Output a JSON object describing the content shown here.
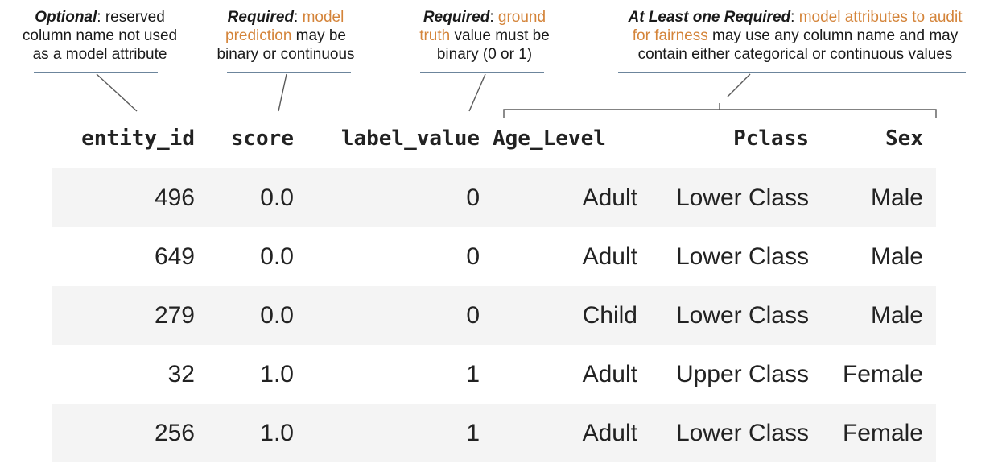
{
  "annotations": {
    "optional": {
      "label": "Optional",
      "text_line1": ": reserved",
      "text_line2": "column name not used",
      "text_line3": "as a model attribute"
    },
    "score": {
      "label": "Required",
      "sep": ": ",
      "highlight_line1": "model",
      "highlight_line2": "prediction",
      "text_line2": " may be",
      "text_line3": "binary or continuous"
    },
    "label_value": {
      "label": "Required",
      "sep": ": ",
      "highlight_line1": "ground",
      "highlight_line2": "truth",
      "text_line2": " value must be",
      "text_line3": "binary (0 or 1)"
    },
    "attributes": {
      "label": "At Least one Required",
      "sep": ":  ",
      "highlight_line1": "model attributes to audit",
      "highlight_line2": "for fairness",
      "text_line2": " may use any column name and may",
      "text_line3": "contain either categorical or continuous values"
    },
    "highlight_color": "#d4843a"
  },
  "table": {
    "columns": [
      "entity_id",
      "score",
      "label_value",
      "Age_Level",
      "Pclass",
      "Sex"
    ],
    "rows": [
      [
        "496",
        "0.0",
        "0",
        "Adult",
        "Lower Class",
        "Male"
      ],
      [
        "649",
        "0.0",
        "0",
        "Adult",
        "Lower Class",
        "Male"
      ],
      [
        "279",
        "0.0",
        "0",
        "Child",
        "Lower Class",
        "Male"
      ],
      [
        "32",
        "1.0",
        "1",
        "Adult",
        "Upper Class",
        "Female"
      ],
      [
        "256",
        "1.0",
        "1",
        "Adult",
        "Lower Class",
        "Female"
      ]
    ]
  }
}
